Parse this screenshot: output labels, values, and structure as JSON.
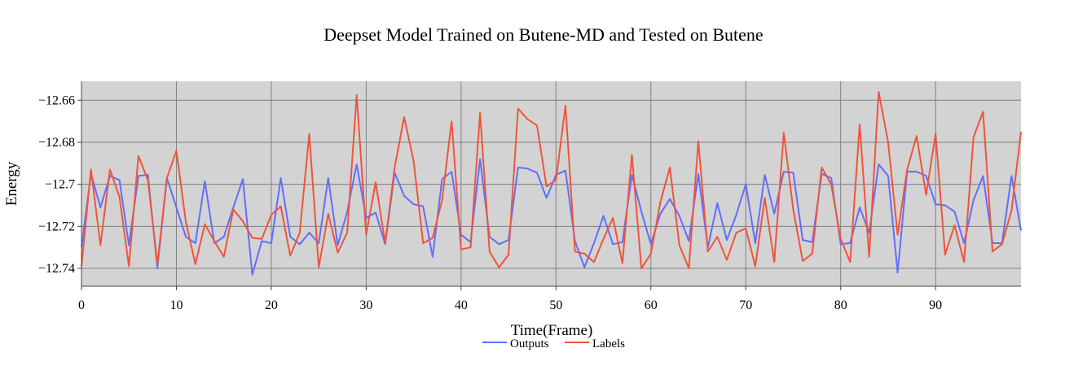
{
  "chart_data": {
    "type": "line",
    "title": "Deepset Model Trained on Butene-MD and Tested on Butene",
    "xlabel": "Time(Frame)",
    "ylabel": "Energy",
    "xlim": [
      0,
      99
    ],
    "ylim": [
      -12.7485,
      -12.651
    ],
    "x_ticks": [
      0,
      10,
      20,
      30,
      40,
      50,
      60,
      70,
      80,
      90
    ],
    "x_tick_labels": [
      "0",
      "10",
      "20",
      "30",
      "40",
      "50",
      "60",
      "70",
      "80",
      "90"
    ],
    "y_ticks": [
      -12.74,
      -12.72,
      -12.7,
      -12.68,
      -12.66
    ],
    "y_tick_labels": [
      "−12.74",
      "−12.72",
      "−12.7",
      "−12.68",
      "−12.66"
    ],
    "grid": true,
    "plot_background": "#d3d3d3",
    "grid_color": "#808080",
    "legend_position": "bottom-center",
    "series": [
      {
        "name": "Outputs",
        "color": "#636efa",
        "values": [
          -12.73,
          -12.695,
          -12.711,
          -12.696,
          -12.698,
          -12.729,
          -12.696,
          -12.6955,
          -12.74,
          -12.697,
          -12.711,
          -12.725,
          -12.728,
          -12.6985,
          -12.728,
          -12.725,
          -12.711,
          -12.6975,
          -12.743,
          -12.727,
          -12.728,
          -12.697,
          -12.725,
          -12.7285,
          -12.723,
          -12.728,
          -12.697,
          -12.729,
          -12.713,
          -12.6905,
          -12.716,
          -12.7135,
          -12.7285,
          -12.6945,
          -12.7055,
          -12.7095,
          -12.7105,
          -12.7345,
          -12.6975,
          -12.694,
          -12.724,
          -12.7275,
          -12.688,
          -12.725,
          -12.7285,
          -12.7265,
          -12.692,
          -12.6925,
          -12.6945,
          -12.7065,
          -12.6955,
          -12.6935,
          -12.727,
          -12.7395,
          -12.728,
          -12.715,
          -12.7285,
          -12.7275,
          -12.6955,
          -12.713,
          -12.7285,
          -12.714,
          -12.707,
          -12.715,
          -12.727,
          -12.695,
          -12.73,
          -12.709,
          -12.7265,
          -12.7145,
          -12.7,
          -12.728,
          -12.6955,
          -12.714,
          -12.694,
          -12.6945,
          -12.7265,
          -12.7275,
          -12.695,
          -12.697,
          -12.7285,
          -12.728,
          -12.711,
          -12.723,
          -12.6905,
          -12.696,
          -12.742,
          -12.694,
          -12.694,
          -12.696,
          -12.7095,
          -12.71,
          -12.713,
          -12.728,
          -12.7075,
          -12.696,
          -12.728,
          -12.728,
          -12.696,
          -12.722
        ]
      },
      {
        "name": "Labels",
        "color": "#ef553b",
        "values": [
          -12.739,
          -12.693,
          -12.729,
          -12.693,
          -12.706,
          -12.739,
          -12.6865,
          -12.698,
          -12.738,
          -12.697,
          -12.684,
          -12.718,
          -12.738,
          -12.719,
          -12.727,
          -12.7345,
          -12.712,
          -12.7175,
          -12.7255,
          -12.726,
          -12.7145,
          -12.7105,
          -12.734,
          -12.723,
          -12.676,
          -12.7395,
          -12.714,
          -12.7325,
          -12.723,
          -12.6575,
          -12.724,
          -12.699,
          -12.728,
          -12.692,
          -12.668,
          -12.689,
          -12.728,
          -12.7255,
          -12.7075,
          -12.67,
          -12.731,
          -12.73,
          -12.666,
          -12.732,
          -12.7395,
          -12.7335,
          -12.664,
          -12.669,
          -12.672,
          -12.701,
          -12.698,
          -12.6625,
          -12.732,
          -12.733,
          -12.737,
          -12.726,
          -12.716,
          -12.7375,
          -12.686,
          -12.74,
          -12.733,
          -12.7085,
          -12.692,
          -12.729,
          -12.74,
          -12.6795,
          -12.732,
          -12.725,
          -12.736,
          -12.723,
          -12.721,
          -12.739,
          -12.7065,
          -12.737,
          -12.6755,
          -12.712,
          -12.7365,
          -12.733,
          -12.692,
          -12.7,
          -12.726,
          -12.737,
          -12.6715,
          -12.7345,
          -12.656,
          -12.68,
          -12.724,
          -12.693,
          -12.677,
          -12.705,
          -12.676,
          -12.7335,
          -12.7195,
          -12.737,
          -12.6775,
          -12.6655,
          -12.732,
          -12.7285,
          -12.7125,
          -12.675
        ]
      }
    ]
  }
}
